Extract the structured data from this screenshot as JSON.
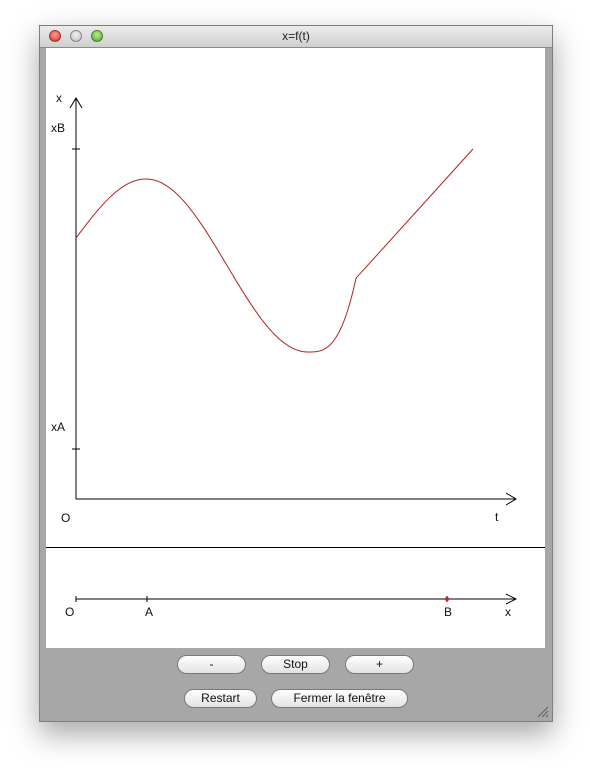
{
  "window": {
    "title": "x=f(t)"
  },
  "graph": {
    "axis_x_label": "x",
    "axis_t_label": "t",
    "origin_label": "O",
    "xB_label": "xB",
    "xA_label": "xA",
    "curve_color": "#b22222"
  },
  "line_axis": {
    "origin_label": "O",
    "a_label": "A",
    "b_label": "B",
    "x_label": "x",
    "point_color": "#cc2222"
  },
  "buttons": {
    "minus": "-",
    "stop": "Stop",
    "plus": "+",
    "restart": "Restart",
    "close": "Fermer la fenêtre"
  }
}
